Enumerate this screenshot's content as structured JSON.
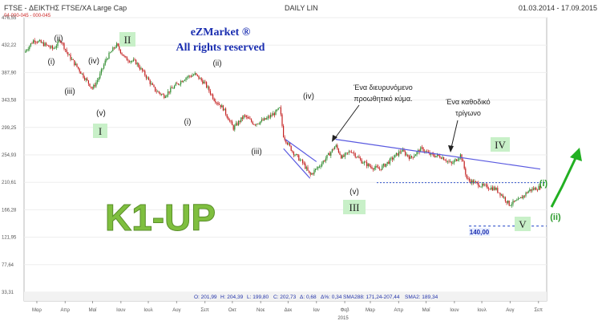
{
  "header": {
    "title": "FTSE - ΔΕΙΚΤΗΣ FTSE/XA Large Cap",
    "mode": "DAILY LIN",
    "range": "01.03.2014 - 17.09.2015",
    "sub_code": "04-000-045 - 000-045"
  },
  "watermark": {
    "line1": "eZMarket ®",
    "line2": "All rights reserved"
  },
  "ohlc_bar": {
    "o": "O: 201,99",
    "h": "H: 204,39",
    "l": "L: 199,80",
    "c": "C: 202,73",
    "delta": "Δ: 0,68",
    "pct": "Δ%: 0,34",
    "sma1": "SMA288: 171,24-207,44",
    "sma2": "SMA2: 189,34"
  },
  "colors": {
    "candle_up": "#2e8b2e",
    "candle_down": "#c42020",
    "trend": "#5a5ae0",
    "support": "#3355cc",
    "k1": "#7fbf3f",
    "ii_green": "#2a9a2a",
    "label_box": "#c8f0c8",
    "arrow_green": "#22b022"
  },
  "chart_data": {
    "type": "candlestick",
    "title": "",
    "ylim": [
      33.31,
      476.55
    ],
    "y_ticks": [
      "476,55",
      "432,22",
      "387,90",
      "343,58",
      "299,25",
      "254,93",
      "210,61",
      "166,28",
      "121,95",
      "77,64",
      "33,31"
    ],
    "x_ticks": [
      "Μαρ",
      "Απρ",
      "Μαϊ",
      "Ιουν",
      "Ιουλ",
      "Αυγ",
      "Σεπ",
      "Οκτ",
      "Νοε",
      "Δεκ",
      "Ιαν",
      "Φεβ",
      "Μαρ",
      "Απρ",
      "Μαϊ",
      "Ιουν",
      "Ιουλ",
      "Αυγ",
      "Σεπ"
    ],
    "year_label": "2015",
    "close_path": [
      [
        "2014-03-01",
        420
      ],
      [
        "2014-03-12",
        441
      ],
      [
        "2014-03-25",
        432
      ],
      [
        "2014-04-02",
        426
      ],
      [
        "2014-04-10",
        441
      ],
      [
        "2014-04-18",
        417
      ],
      [
        "2014-04-28",
        397
      ],
      [
        "2014-05-08",
        376
      ],
      [
        "2014-05-15",
        362
      ],
      [
        "2014-05-22",
        380
      ],
      [
        "2014-05-30",
        410
      ],
      [
        "2014-06-10",
        433
      ],
      [
        "2014-06-20",
        410
      ],
      [
        "2014-07-01",
        405
      ],
      [
        "2014-07-12",
        383
      ],
      [
        "2014-07-22",
        360
      ],
      [
        "2014-08-01",
        350
      ],
      [
        "2014-08-12",
        365
      ],
      [
        "2014-08-25",
        380
      ],
      [
        "2014-09-04",
        385
      ],
      [
        "2014-09-15",
        370
      ],
      [
        "2014-09-25",
        345
      ],
      [
        "2014-10-05",
        330
      ],
      [
        "2014-10-16",
        298
      ],
      [
        "2014-10-28",
        318
      ],
      [
        "2014-11-08",
        305
      ],
      [
        "2014-11-20",
        312
      ],
      [
        "2014-11-30",
        322
      ],
      [
        "2014-12-06",
        330
      ],
      [
        "2014-12-10",
        285
      ],
      [
        "2014-12-20",
        260
      ],
      [
        "2015-01-01",
        240
      ],
      [
        "2015-01-08",
        222
      ],
      [
        "2015-01-20",
        240
      ],
      [
        "2015-01-30",
        258
      ],
      [
        "2015-02-05",
        270
      ],
      [
        "2015-02-12",
        250
      ],
      [
        "2015-02-22",
        262
      ],
      [
        "2015-03-05",
        245
      ],
      [
        "2015-03-15",
        236
      ],
      [
        "2015-03-25",
        232
      ],
      [
        "2015-04-05",
        245
      ],
      [
        "2015-04-18",
        262
      ],
      [
        "2015-04-28",
        250
      ],
      [
        "2015-05-10",
        265
      ],
      [
        "2015-05-20",
        255
      ],
      [
        "2015-06-01",
        252
      ],
      [
        "2015-06-12",
        240
      ],
      [
        "2015-06-22",
        255
      ],
      [
        "2015-06-29",
        215
      ],
      [
        "2015-07-15",
        205
      ],
      [
        "2015-07-30",
        200
      ],
      [
        "2015-08-06",
        190
      ],
      [
        "2015-08-14",
        175
      ],
      [
        "2015-08-24",
        181
      ],
      [
        "2015-09-05",
        198
      ],
      [
        "2015-09-17",
        202.73
      ]
    ],
    "resistance_line": [
      [
        "2015-02-05",
        280
      ],
      [
        "2015-09-17",
        232
      ]
    ],
    "fan_upper": [
      [
        "2014-12-12",
        280
      ],
      [
        "2015-01-15",
        244
      ]
    ],
    "fan_lower": [
      [
        "2014-12-10",
        265
      ],
      [
        "2015-01-08",
        217
      ]
    ],
    "support_level": 210,
    "target_level": 140
  },
  "annotations": {
    "wave_labels": [
      "(i)",
      "(ii)",
      "(iii)",
      "(iv)",
      "(v)",
      "(i)",
      "(ii)",
      "(iii)",
      "(iv)",
      "(v)",
      "(i)",
      "(ii)"
    ],
    "big_labels": [
      "I",
      "II",
      "III",
      "IV",
      "V"
    ],
    "note1": [
      "Ένα διευρυνόμενο",
      "προωθητικό κύμα."
    ],
    "note2": [
      "Ένα καθοδικό",
      "τρίγωνο"
    ],
    "target_label": "140,00",
    "k1": "K1-UP"
  }
}
